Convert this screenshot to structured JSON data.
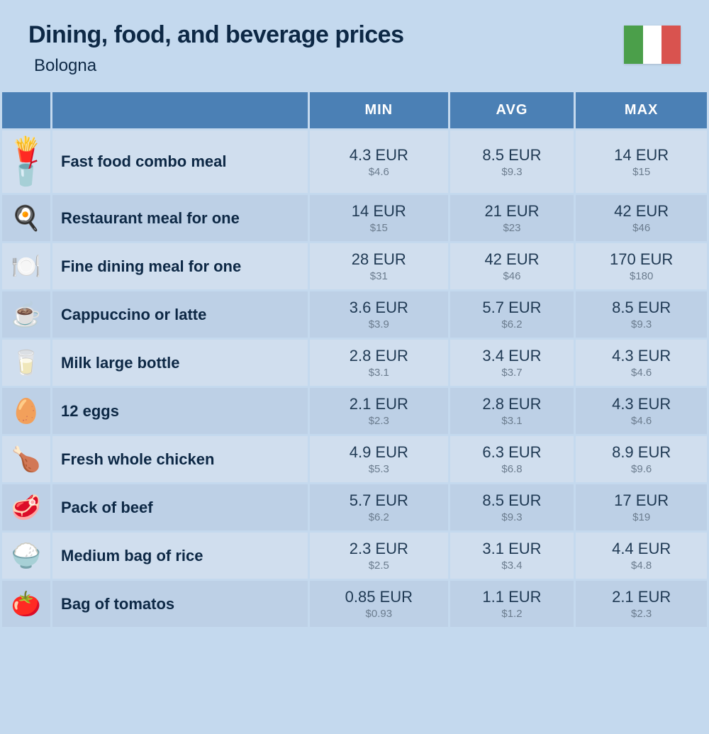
{
  "header": {
    "title": "Dining, food, and beverage prices",
    "location": "Bologna"
  },
  "flag": {
    "colors": [
      "#4b9f4a",
      "#ffffff",
      "#d9534f"
    ]
  },
  "columns": {
    "min": "MIN",
    "avg": "AVG",
    "max": "MAX"
  },
  "colors": {
    "page_bg": "#c4d9ee",
    "header_bg": "#4b80b5",
    "header_text": "#ffffff",
    "row_odd_bg": "#d0deee",
    "row_even_bg": "#bdd0e6",
    "title_text": "#0d2845",
    "price_text": "#203a54",
    "usd_text": "#6b7c8e"
  },
  "items": [
    {
      "icon": "🍟🥤",
      "name": "Fast food combo meal",
      "min_eur": "4.3 EUR",
      "min_usd": "$4.6",
      "avg_eur": "8.5 EUR",
      "avg_usd": "$9.3",
      "max_eur": "14 EUR",
      "max_usd": "$15"
    },
    {
      "icon": "🍳",
      "name": "Restaurant meal for one",
      "min_eur": "14 EUR",
      "min_usd": "$15",
      "avg_eur": "21 EUR",
      "avg_usd": "$23",
      "max_eur": "42 EUR",
      "max_usd": "$46"
    },
    {
      "icon": "🍽️",
      "name": "Fine dining meal for one",
      "min_eur": "28 EUR",
      "min_usd": "$31",
      "avg_eur": "42 EUR",
      "avg_usd": "$46",
      "max_eur": "170 EUR",
      "max_usd": "$180"
    },
    {
      "icon": "☕",
      "name": "Cappuccino or latte",
      "min_eur": "3.6 EUR",
      "min_usd": "$3.9",
      "avg_eur": "5.7 EUR",
      "avg_usd": "$6.2",
      "max_eur": "8.5 EUR",
      "max_usd": "$9.3"
    },
    {
      "icon": "🥛",
      "name": "Milk large bottle",
      "min_eur": "2.8 EUR",
      "min_usd": "$3.1",
      "avg_eur": "3.4 EUR",
      "avg_usd": "$3.7",
      "max_eur": "4.3 EUR",
      "max_usd": "$4.6"
    },
    {
      "icon": "🥚",
      "name": "12 eggs",
      "min_eur": "2.1 EUR",
      "min_usd": "$2.3",
      "avg_eur": "2.8 EUR",
      "avg_usd": "$3.1",
      "max_eur": "4.3 EUR",
      "max_usd": "$4.6"
    },
    {
      "icon": "🍗",
      "name": "Fresh whole chicken",
      "min_eur": "4.9 EUR",
      "min_usd": "$5.3",
      "avg_eur": "6.3 EUR",
      "avg_usd": "$6.8",
      "max_eur": "8.9 EUR",
      "max_usd": "$9.6"
    },
    {
      "icon": "🥩",
      "name": "Pack of beef",
      "min_eur": "5.7 EUR",
      "min_usd": "$6.2",
      "avg_eur": "8.5 EUR",
      "avg_usd": "$9.3",
      "max_eur": "17 EUR",
      "max_usd": "$19"
    },
    {
      "icon": "🍚",
      "name": "Medium bag of rice",
      "min_eur": "2.3 EUR",
      "min_usd": "$2.5",
      "avg_eur": "3.1 EUR",
      "avg_usd": "$3.4",
      "max_eur": "4.4 EUR",
      "max_usd": "$4.8"
    },
    {
      "icon": "🍅",
      "name": "Bag of tomatos",
      "min_eur": "0.85 EUR",
      "min_usd": "$0.93",
      "avg_eur": "1.1 EUR",
      "avg_usd": "$1.2",
      "max_eur": "2.1 EUR",
      "max_usd": "$2.3"
    }
  ]
}
